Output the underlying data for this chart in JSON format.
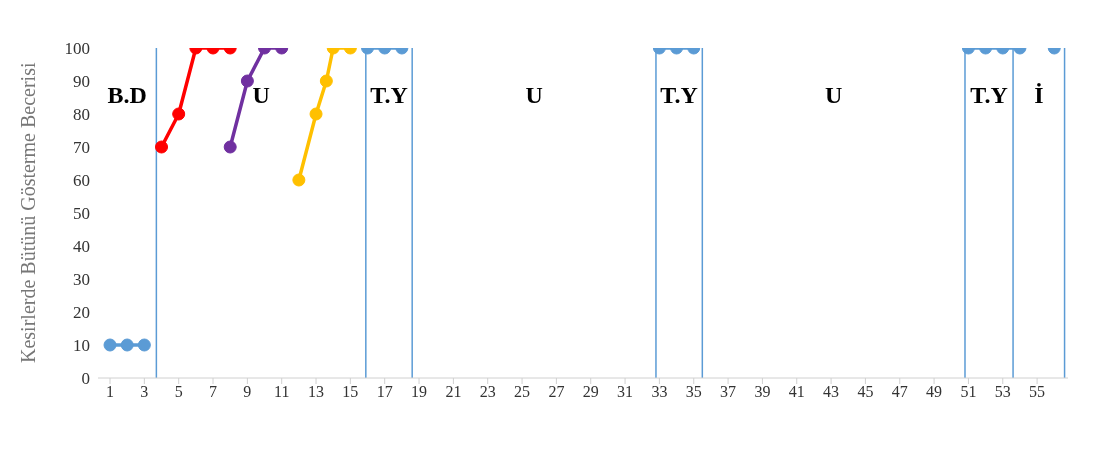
{
  "chart_data": {
    "type": "line",
    "ylabel": "Kesirlerde Bütünü Gösterme Becerisi",
    "xlim": [
      0.3,
      56.8
    ],
    "xticks": [
      1,
      3,
      5,
      7,
      9,
      11,
      13,
      15,
      17,
      19,
      21,
      23,
      25,
      27,
      29,
      31,
      33,
      35,
      37,
      39,
      41,
      43,
      45,
      47,
      49,
      51,
      53,
      55
    ],
    "ylim": [
      0,
      100
    ],
    "yticks": [
      0,
      10,
      20,
      30,
      40,
      50,
      60,
      70,
      80,
      90,
      100
    ],
    "marker": "circle",
    "line_style": "solid",
    "series": [
      {
        "color": "#5b9bd5",
        "x": [
          1,
          2,
          3
        ],
        "values": [
          10,
          10,
          10
        ]
      },
      {
        "color": "#ff0000",
        "x": [
          4,
          5,
          6,
          7,
          8
        ],
        "values": [
          70,
          80,
          100,
          100,
          100
        ]
      },
      {
        "color": "#7030a0",
        "x": [
          8,
          9,
          10,
          11
        ],
        "values": [
          70,
          90,
          100,
          100
        ]
      },
      {
        "color": "#ffc000",
        "x": [
          12,
          13,
          13.6,
          14,
          15
        ],
        "values": [
          60,
          80,
          90,
          100,
          100
        ]
      },
      {
        "color": "#5b9bd5",
        "x": [
          16,
          17,
          18
        ],
        "values": [
          100,
          100,
          100
        ]
      },
      {
        "color": "#5b9bd5",
        "x": [
          33,
          34,
          35
        ],
        "values": [
          100,
          100,
          100
        ]
      },
      {
        "color": "#5b9bd5",
        "x": [
          51,
          52,
          53,
          54
        ],
        "values": [
          100,
          100,
          100,
          100
        ]
      },
      {
        "color": "#5b9bd5",
        "x": [
          56
        ],
        "values": [
          100
        ]
      }
    ],
    "ref_lines": [
      {
        "axis": "x",
        "value": 3.7,
        "color": "#5b9bd5"
      },
      {
        "axis": "x",
        "value": 15.9,
        "color": "#5b9bd5"
      },
      {
        "axis": "x",
        "value": 18.6,
        "color": "#5b9bd5"
      },
      {
        "axis": "x",
        "value": 32.8,
        "color": "#5b9bd5"
      },
      {
        "axis": "x",
        "value": 35.5,
        "color": "#5b9bd5"
      },
      {
        "axis": "x",
        "value": 50.8,
        "color": "#5b9bd5"
      },
      {
        "axis": "x",
        "value": 53.6,
        "color": "#5b9bd5"
      },
      {
        "axis": "x",
        "value": 56.6,
        "color": "#5b9bd5"
      }
    ],
    "annotations": [
      "B.D",
      "U",
      "T.Y",
      "U",
      "T.Y",
      "U",
      "T.Y",
      "İ"
    ]
  }
}
